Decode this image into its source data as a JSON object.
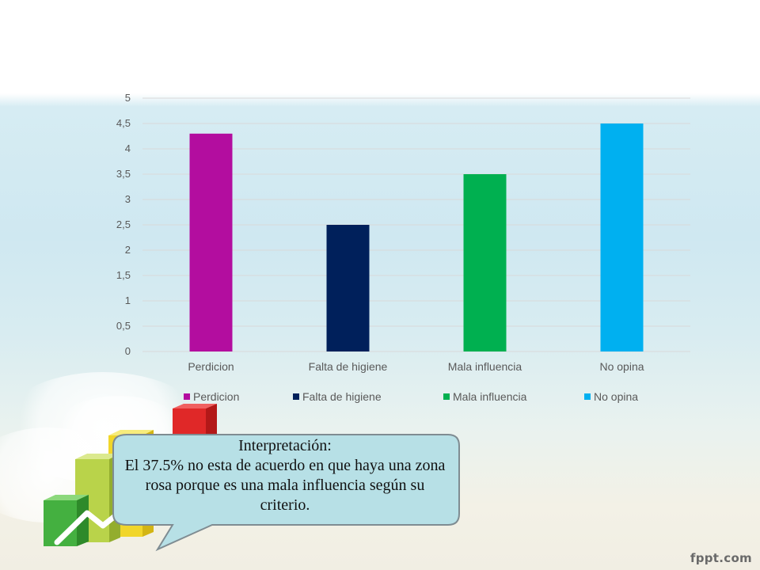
{
  "chart_data": {
    "type": "bar",
    "categories": [
      "Perdicion",
      "Falta de higiene",
      "Mala influencia",
      "No opina"
    ],
    "values": [
      4.3,
      2.5,
      3.5,
      4.5
    ],
    "colors": [
      "#b30d9f",
      "#00205b",
      "#00b050",
      "#00b0f0"
    ],
    "ylim": [
      0,
      5
    ],
    "yticks": [
      "0",
      "0,5",
      "1",
      "1,5",
      "2",
      "2,5",
      "3",
      "3,5",
      "4",
      "4,5",
      "5"
    ],
    "grid": true,
    "legend": {
      "position": "bottom",
      "entries": [
        "Perdicion",
        "Falta de higiene",
        "Mala influencia",
        "No opina"
      ]
    },
    "title": "",
    "xlabel": "",
    "ylabel": ""
  },
  "callout": {
    "heading": "Interpretación:",
    "body": "El 37.5% no esta de acuerdo en que haya una zona rosa porque es una mala influencia según su criterio."
  },
  "footer": {
    "brand": "fppt.com"
  }
}
